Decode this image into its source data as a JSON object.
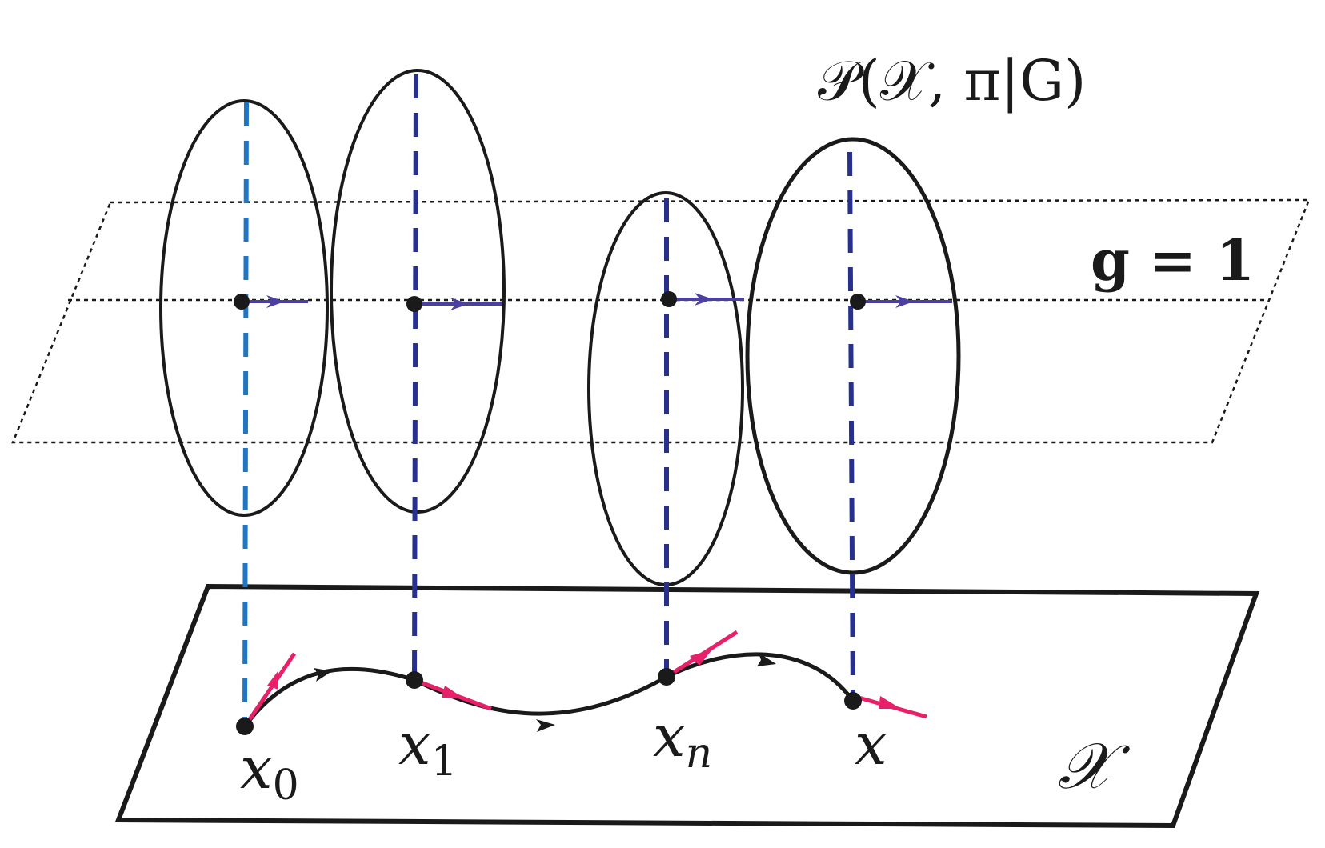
{
  "labels": {
    "bundle": "𝒫(𝒳, π|G)",
    "section": "g = 1",
    "base_space": "𝒳",
    "points": [
      {
        "base": "x",
        "sub": "0"
      },
      {
        "base": "x",
        "sub": "1"
      },
      {
        "base": "x",
        "sub": "n"
      },
      {
        "base": "x",
        "sub": ""
      }
    ]
  },
  "colors": {
    "outline": "#1a1a1a",
    "fiber_first": "#1f77c4",
    "fiber": "#27308f",
    "horizontal_arrow": "#4b3fa0",
    "tangent": "#e8206a"
  },
  "icons": {
    "fiber": "ellipse",
    "path_arrow": "arrowhead",
    "tangent_vector": "arrow-with-tick"
  }
}
